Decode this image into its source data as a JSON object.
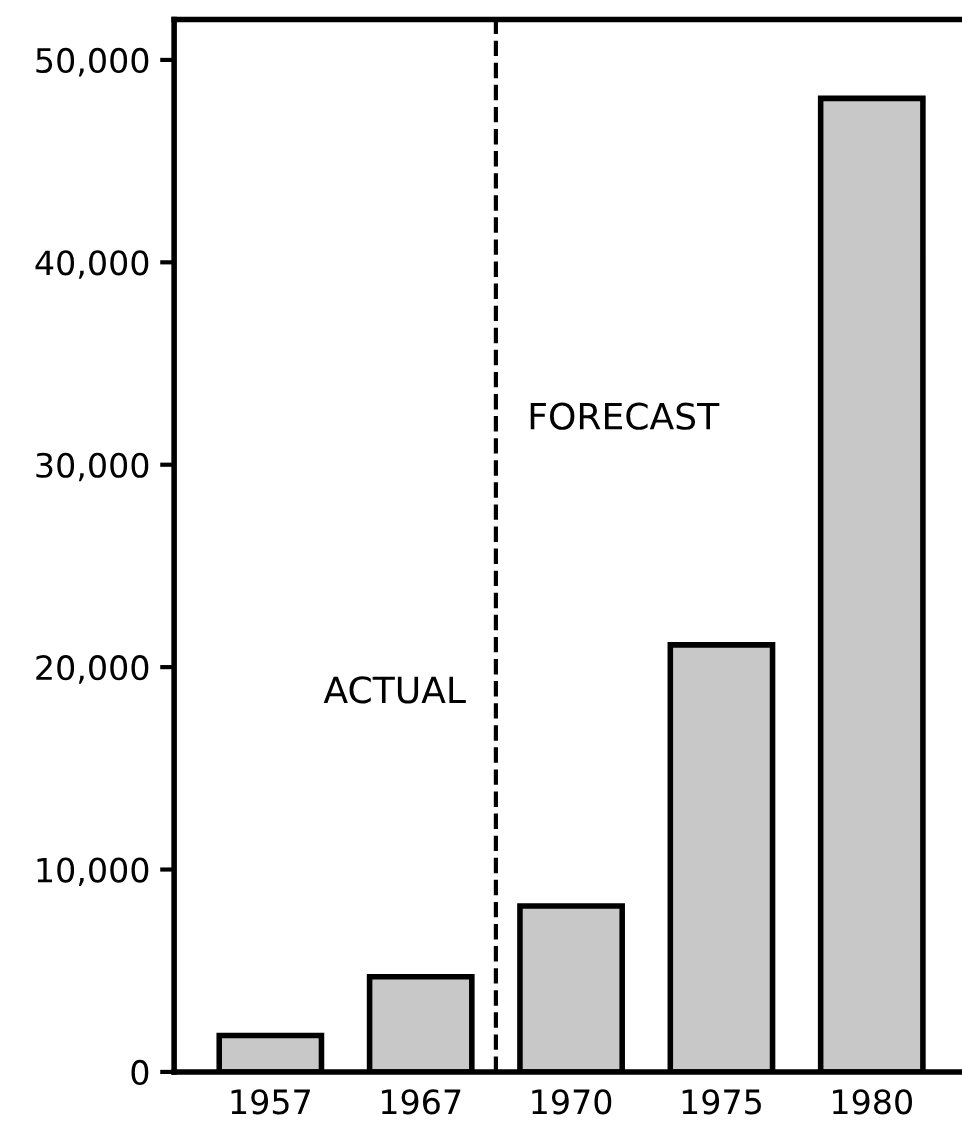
{
  "chart_data": {
    "type": "bar",
    "categories": [
      "1957",
      "1967",
      "1970",
      "1975",
      "1980"
    ],
    "values": [
      1800,
      4700,
      8200,
      21100,
      48100
    ],
    "color": "#c8c8c8",
    "ylim": [
      0,
      52000
    ],
    "yticks": [
      {
        "value": 0,
        "label": "0"
      },
      {
        "value": 10000,
        "label": "10,000"
      },
      {
        "value": 20000,
        "label": "20,000"
      },
      {
        "value": 30000,
        "label": "30,000"
      },
      {
        "value": 40000,
        "label": "40,000"
      },
      {
        "value": 50000,
        "label": "50,000"
      }
    ],
    "annotations": [
      "ACTUAL",
      "FORECAST"
    ],
    "grid": false,
    "legend": false
  }
}
